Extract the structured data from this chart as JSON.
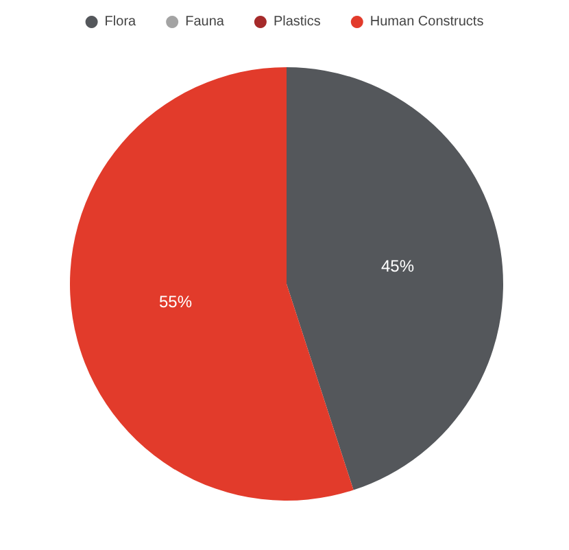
{
  "chart_data": {
    "type": "pie",
    "categories": [
      "Flora",
      "Fauna",
      "Plastics",
      "Human Constructs"
    ],
    "values": [
      45,
      0,
      0,
      55
    ],
    "colors": [
      "#54575b",
      "#a3a3a3",
      "#a52a2a",
      "#e23b2b"
    ],
    "value_labels": [
      "45%",
      null,
      null,
      "55%"
    ],
    "legend": "top"
  }
}
